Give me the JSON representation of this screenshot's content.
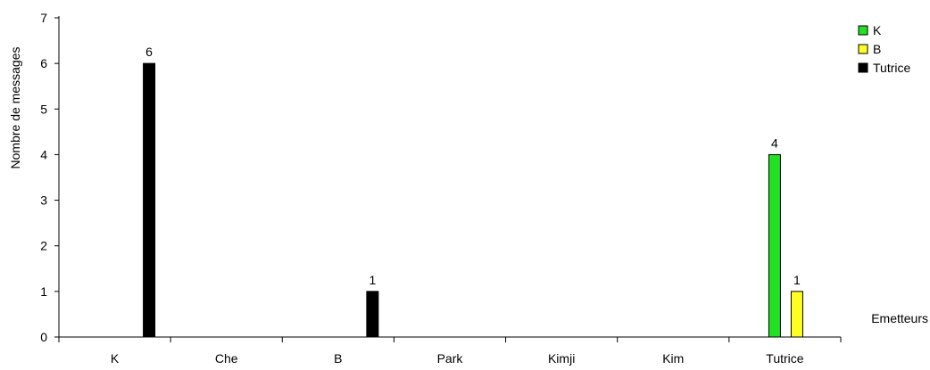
{
  "chart_data": {
    "type": "bar",
    "title": "",
    "xlabel": "Emetteurs",
    "ylabel": "Nombre de messages",
    "ylim": [
      0,
      7
    ],
    "yticks": [
      "0",
      "1",
      "2",
      "3",
      "4",
      "5",
      "6",
      "7"
    ],
    "grid": false,
    "legend_position": "top-right",
    "categories": [
      "K",
      "Che",
      "B",
      "Park",
      "Kimji",
      "Kim",
      "Tutrice"
    ],
    "series": [
      {
        "name": "K",
        "color": "#22e022",
        "values": [
          0,
          0,
          0,
          0,
          0,
          0,
          4
        ]
      },
      {
        "name": "B",
        "color": "#ffff22",
        "values": [
          0,
          0,
          0,
          0,
          0,
          0,
          1
        ]
      },
      {
        "name": "Tutrice",
        "color": "#000000",
        "values": [
          6,
          0,
          1,
          0,
          0,
          0,
          0
        ]
      }
    ],
    "data_labels": [
      {
        "series": "Tutrice",
        "category": "K",
        "text": "6"
      },
      {
        "series": "Tutrice",
        "category": "B",
        "text": "1"
      },
      {
        "series": "K",
        "category": "Tutrice",
        "text": "4"
      },
      {
        "series": "B",
        "category": "Tutrice",
        "text": "1"
      }
    ]
  }
}
